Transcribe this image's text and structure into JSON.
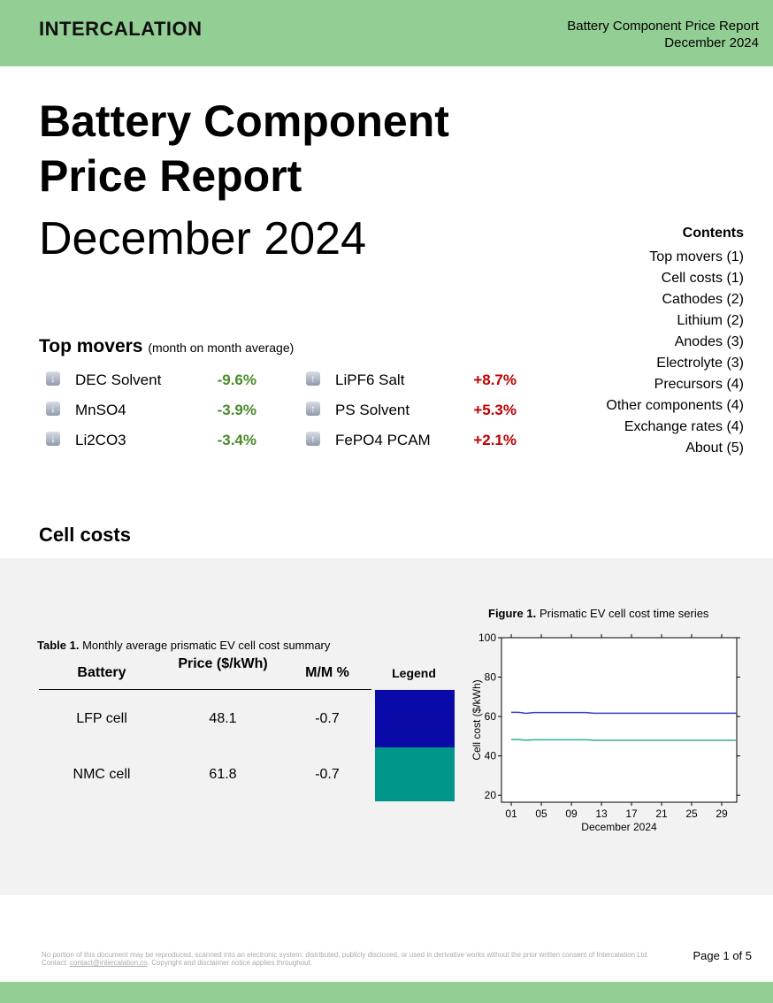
{
  "header": {
    "brand": "INTERCALATION",
    "title": "Battery Component Price Report",
    "date": "December 2024"
  },
  "title": {
    "line1": "Battery Component",
    "line2": "Price Report",
    "date": "December 2024"
  },
  "contents": {
    "heading": "Contents",
    "items": [
      "Top movers (1)",
      "Cell costs (1)",
      "Cathodes (2)",
      "Lithium (2)",
      "Anodes (3)",
      "Electrolyte (3)",
      "Precursors (4)",
      "Other components (4)",
      "Exchange rates (4)",
      "About (5)"
    ]
  },
  "top_movers": {
    "heading": "Top movers",
    "subtitle": "(month on month average)",
    "down": [
      {
        "name": "DEC Solvent",
        "change": "-9.6%"
      },
      {
        "name": "MnSO4",
        "change": "-3.9%"
      },
      {
        "name": "Li2CO3",
        "change": "-3.4%"
      }
    ],
    "up": [
      {
        "name": "LiPF6 Salt",
        "change": "+8.7%"
      },
      {
        "name": "PS Solvent",
        "change": "+5.3%"
      },
      {
        "name": "FePO4 PCAM",
        "change": "+2.1%"
      }
    ]
  },
  "cell_costs": {
    "heading": "Cell costs"
  },
  "table": {
    "label": "Table 1.",
    "caption": "Monthly average prismatic EV cell cost summary",
    "headers": [
      "Battery",
      "Price ($/kWh)",
      "M/M %",
      "Legend"
    ],
    "rows": [
      {
        "battery": "LFP cell",
        "price": "48.1",
        "change": "-0.7",
        "color": "#0a0aa8"
      },
      {
        "battery": "NMC cell",
        "price": "61.8",
        "change": "-0.7",
        "color": "#00968a"
      }
    ]
  },
  "chart_data": {
    "type": "line",
    "label": "Figure 1.",
    "title": "Prismatic EV cell cost time series",
    "y_label": "Cell cost ($/kWh)",
    "x_label": "December 2024",
    "x": [
      1,
      2,
      3,
      4,
      5,
      6,
      7,
      8,
      9,
      10,
      11,
      12,
      13,
      14,
      15,
      16,
      17,
      18,
      19,
      20,
      21,
      22,
      23,
      24,
      25,
      26,
      27,
      28,
      29,
      30,
      31
    ],
    "series": [
      {
        "color": "#3b3bc4",
        "values": [
          62.1,
          62.1,
          61.6,
          62.0,
          62.0,
          62.0,
          62.0,
          62.0,
          62.0,
          62.0,
          62.0,
          61.7,
          61.7,
          61.7,
          61.7,
          61.7,
          61.7,
          61.7,
          61.7,
          61.7,
          61.7,
          61.7,
          61.7,
          61.7,
          61.7,
          61.7,
          61.7,
          61.7,
          61.7,
          61.7,
          61.7
        ]
      },
      {
        "color": "#3aaa98",
        "values": [
          48.3,
          48.3,
          47.9,
          48.2,
          48.2,
          48.2,
          48.2,
          48.2,
          48.2,
          48.2,
          48.2,
          47.9,
          47.9,
          47.9,
          47.9,
          47.9,
          47.9,
          47.9,
          47.9,
          47.9,
          47.9,
          47.9,
          47.9,
          47.9,
          47.9,
          47.9,
          47.9,
          47.9,
          47.9,
          47.9,
          47.9
        ]
      }
    ],
    "xlim": [
      -0.3,
      31
    ],
    "xticks": [
      {
        "value": 1,
        "label": "01"
      },
      {
        "value": 5,
        "label": "05"
      },
      {
        "value": 9,
        "label": "09"
      },
      13,
      17,
      21,
      25,
      29
    ],
    "ylim": [
      16.5,
      100
    ],
    "yticks": [
      20,
      40,
      60,
      80,
      100
    ]
  },
  "footer": {
    "disclaimer_before": "No portion of this document may be reproduced, scanned into an electronic system, distributed, publicly disclosed, or used in derivative works without the prior written consent of Intercalation Ltd. Contact: ",
    "email": "contact@intercalation.co",
    "disclaimer_after": ". Copyright and disclaimer notice applies throughout.",
    "page": "Page 1 of 5"
  }
}
